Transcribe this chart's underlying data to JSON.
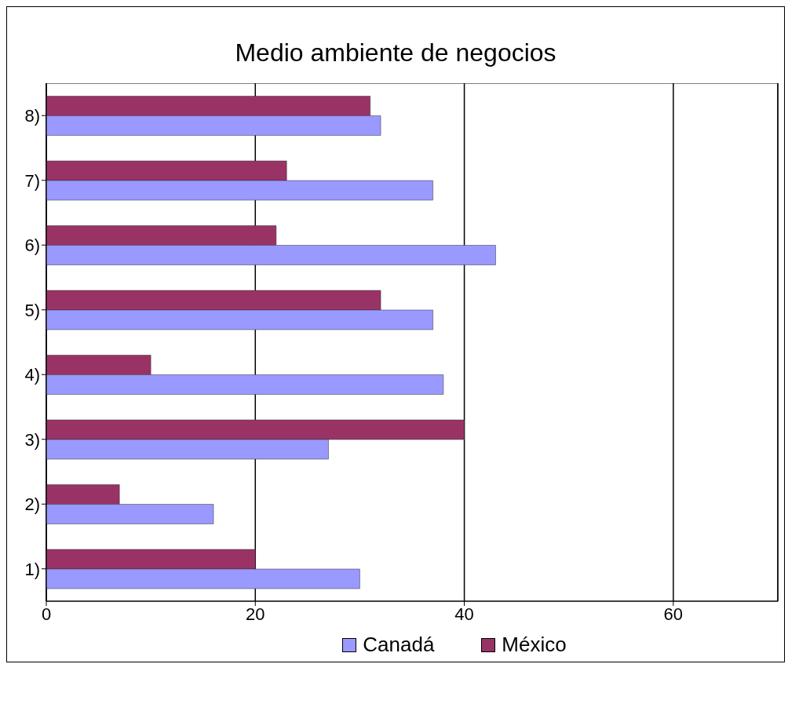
{
  "chart_data": {
    "type": "bar",
    "orientation": "horizontal",
    "title": "Medio ambiente de negocios",
    "categories": [
      "8)",
      "7)",
      "6)",
      "5)",
      "4)",
      "3)",
      "2)",
      "1)"
    ],
    "series": [
      {
        "name": "Canadá",
        "color": "#9999ff",
        "values": [
          32,
          37,
          43,
          37,
          38,
          27,
          16,
          30
        ]
      },
      {
        "name": "México",
        "color": "#993366",
        "values": [
          31,
          23,
          22,
          32,
          10,
          40,
          7,
          20
        ]
      }
    ],
    "xlim": [
      0,
      70
    ],
    "xticks": [
      0,
      20,
      40,
      60
    ],
    "grid": "x",
    "legend": "bottom"
  }
}
